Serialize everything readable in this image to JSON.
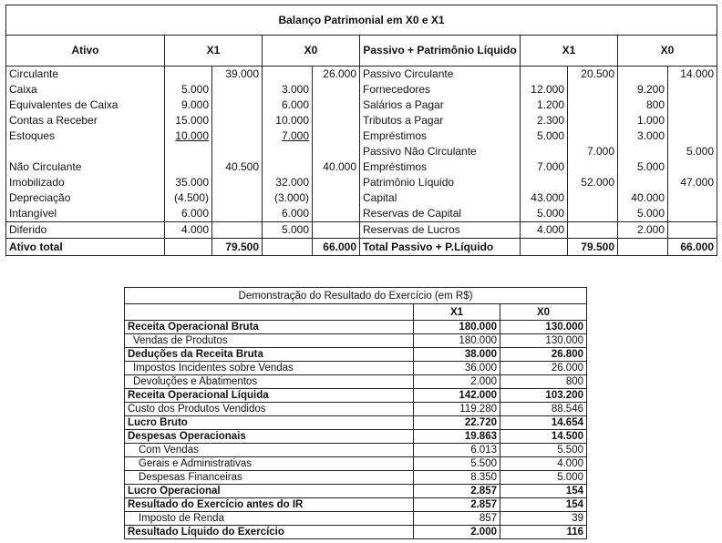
{
  "balanco": {
    "title": "Balanço Patrimonial em X0 e X1",
    "headers": {
      "ativo": "Ativo",
      "x1_left": "X1",
      "x0_left": "X0",
      "passivo": "Passivo + Patrimônio Líquido",
      "x1_right": "X1",
      "x0_right": "X0"
    },
    "rows": [
      {
        "l": [
          "Circulante",
          "",
          "39.000",
          "",
          "26.000"
        ],
        "r": [
          "Passivo Circulante",
          "",
          "20.500",
          "",
          "14.000"
        ]
      },
      {
        "l": [
          "Caixa",
          "5.000",
          "",
          "3.000",
          ""
        ],
        "r": [
          "Fornecedores",
          "12.000",
          "",
          "9.200",
          ""
        ]
      },
      {
        "l": [
          "Equivalentes de Caixa",
          "9.000",
          "",
          "6.000",
          ""
        ],
        "r": [
          "Salários a Pagar",
          "1.200",
          "",
          "800",
          ""
        ]
      },
      {
        "l": [
          "Contas a Receber",
          "15.000",
          "",
          "10.000",
          ""
        ],
        "r": [
          "Tributos a Pagar",
          "2.300",
          "",
          "1.000",
          ""
        ]
      },
      {
        "l": [
          "Estoques",
          "10.000",
          "",
          "7.000",
          ""
        ],
        "r": [
          "Empréstimos",
          "5.000",
          "",
          "3.000",
          ""
        ],
        "underline_left": true
      },
      {
        "l": [
          "",
          "",
          "",
          "",
          ""
        ],
        "r": [
          "Passivo Não Circulante",
          "",
          "7.000",
          "",
          "5.000"
        ]
      },
      {
        "l": [
          "Não Circulante",
          "",
          "40.500",
          "",
          "40.000"
        ],
        "r": [
          "Empréstimos",
          "7.000",
          "",
          "5.000",
          ""
        ]
      },
      {
        "l": [
          "Imobilizado",
          "35.000",
          "",
          "32.000",
          ""
        ],
        "r": [
          "Patrimônio Líquido",
          "",
          "52.000",
          "",
          "47.000"
        ]
      },
      {
        "l": [
          "Depreciação",
          "(4.500)",
          "",
          "(3.000)",
          ""
        ],
        "r": [
          "Capital",
          "43.000",
          "",
          "40.000",
          ""
        ]
      },
      {
        "l": [
          "Intangível",
          "6.000",
          "",
          "6.000",
          ""
        ],
        "r": [
          "Reservas de Capital",
          "5.000",
          "",
          "5.000",
          ""
        ]
      },
      {
        "l": [
          "Diferido",
          "4.000",
          "",
          "5.000",
          ""
        ],
        "r": [
          "Reservas de Lucros",
          "4.000",
          "",
          "2.000",
          ""
        ],
        "sep": true
      },
      {
        "l": [
          "Ativo total",
          "",
          "79.500",
          "",
          "66.000"
        ],
        "r": [
          "Total Passivo + P.Líquido",
          "",
          "79.500",
          "",
          "66.000"
        ],
        "sep": true,
        "bold": true,
        "last": true
      }
    ]
  },
  "dre": {
    "title": "Demonstração do Resultado do Exercício (em R$)",
    "headers": {
      "x1": "X1",
      "x0": "X0"
    },
    "rows": [
      {
        "label": "Receita Operacional Bruta",
        "x1": "180.000",
        "x0": "130.000",
        "bold": true,
        "indent": 0
      },
      {
        "label": "Vendas de Produtos",
        "x1": "180.000",
        "x0": "130.000",
        "bold": false,
        "indent": 1
      },
      {
        "label": "Deduções da Receita Bruta",
        "x1": "38.000",
        "x0": "26.800",
        "bold": true,
        "indent": 0
      },
      {
        "label": "Impostos Incidentes sobre Vendas",
        "x1": "36.000",
        "x0": "26.000",
        "bold": false,
        "indent": 1
      },
      {
        "label": "Devoluções e Abatimentos",
        "x1": "2.000",
        "x0": "800",
        "bold": false,
        "indent": 1
      },
      {
        "label": "Receita Operacional Líquida",
        "x1": "142.000",
        "x0": "103.200",
        "bold": true,
        "indent": 0
      },
      {
        "label": "Custo dos Produtos Vendidos",
        "x1": "119.280",
        "x0": "88.546",
        "bold": false,
        "indent": 0
      },
      {
        "label": "Lucro Bruto",
        "x1": "22.720",
        "x0": "14.654",
        "bold": true,
        "indent": 0
      },
      {
        "label": "Despesas Operacionais",
        "x1": "19.863",
        "x0": "14.500",
        "bold": true,
        "indent": 0
      },
      {
        "label": "Com Vendas",
        "x1": "6.013",
        "x0": "5.500",
        "bold": false,
        "indent": 2
      },
      {
        "label": "Gerais e Administrativas",
        "x1": "5.500",
        "x0": "4.000",
        "bold": false,
        "indent": 2
      },
      {
        "label": "Despesas Financeiras",
        "x1": "8.350",
        "x0": "5.000",
        "bold": false,
        "indent": 2
      },
      {
        "label": "Lucro Operacional",
        "x1": "2.857",
        "x0": "154",
        "bold": true,
        "indent": 0
      },
      {
        "label": "Resultado do Exercício antes do IR",
        "x1": "2.857",
        "x0": "154",
        "bold": true,
        "indent": 0
      },
      {
        "label": "Imposto de Renda",
        "x1": "857",
        "x0": "39",
        "bold": false,
        "indent": 2
      },
      {
        "label": "Resultado Líquido do Exercício",
        "x1": "2.000",
        "x0": "116",
        "bold": true,
        "indent": 0
      }
    ]
  }
}
